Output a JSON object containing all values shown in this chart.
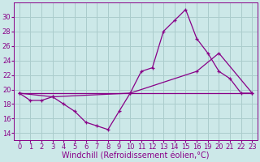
{
  "background_color": "#cce8e8",
  "grid_color": "#aacccc",
  "line_color": "#880088",
  "xlabel": "Windchill (Refroidissement éolien,°C)",
  "xlabel_fontsize": 7,
  "tick_fontsize": 6,
  "ylim": [
    13,
    32
  ],
  "yticks": [
    14,
    16,
    18,
    20,
    22,
    24,
    26,
    28,
    30
  ],
  "xtick_labels": [
    "0",
    "1",
    "2",
    "3",
    "4",
    "5",
    "6",
    "7",
    "8",
    "9",
    "10",
    "11",
    "12",
    "13",
    "14",
    "15",
    "16",
    "19",
    "20",
    "21",
    "22",
    "23"
  ],
  "xtick_pos": [
    0,
    1,
    2,
    3,
    4,
    5,
    6,
    7,
    8,
    9,
    10,
    11,
    12,
    13,
    14,
    15,
    16,
    17,
    18,
    19,
    20,
    21
  ],
  "xlim": [
    -0.5,
    21.5
  ],
  "series1_x": [
    0,
    1,
    2,
    3,
    4,
    5,
    6,
    7,
    8,
    9,
    10,
    11,
    12,
    13,
    14,
    15,
    16,
    17,
    18,
    19,
    20,
    21
  ],
  "series1_y": [
    19.5,
    18.5,
    18.5,
    19.0,
    18.0,
    17.0,
    15.5,
    15.0,
    14.5,
    17.0,
    19.5,
    22.5,
    23.0,
    28.0,
    29.5,
    31.0,
    27.0,
    25.0,
    22.5,
    21.5,
    19.5,
    19.5
  ],
  "series2_x": [
    0,
    3,
    10,
    16,
    18,
    21
  ],
  "series2_y": [
    19.5,
    19.0,
    19.5,
    22.5,
    25.0,
    19.5
  ],
  "series3_x": [
    0,
    21
  ],
  "series3_y": [
    19.5,
    19.5
  ]
}
